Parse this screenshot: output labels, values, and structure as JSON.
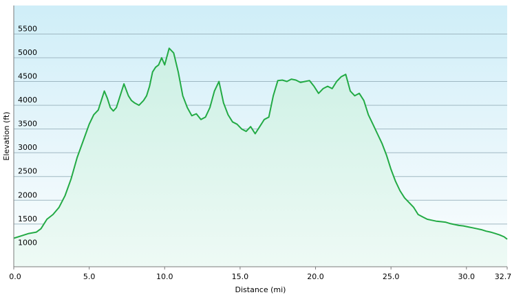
{
  "chart_data": {
    "type": "area",
    "title": "",
    "xlabel": "Distance (mi)",
    "ylabel": "Elevation (ft)",
    "xlim": [
      0,
      32.7
    ],
    "ylim": [
      600,
      6100
    ],
    "x_ticks": [
      0,
      5,
      10,
      15,
      20,
      25,
      30,
      32.7
    ],
    "x_tick_labels": [
      "0.0",
      "5.0",
      "10.0",
      "15.0",
      "20.0",
      "25.0",
      "30.0",
      "32.7"
    ],
    "y_ticks": [
      1000,
      1500,
      2000,
      2500,
      3000,
      3500,
      4000,
      4500,
      5000,
      5500
    ],
    "y_tick_labels": [
      "1000",
      "1500",
      "2000",
      "2500",
      "3000",
      "3500",
      "4000",
      "4500",
      "5000",
      "5500"
    ],
    "grid": true,
    "legend": "none",
    "series": [
      {
        "x": [
          0,
          0.5,
          1.0,
          1.5,
          1.8,
          2.2,
          2.6,
          3.0,
          3.4,
          3.8,
          4.2,
          4.6,
          5.0,
          5.3,
          5.6,
          5.8,
          6.0,
          6.2,
          6.4,
          6.6,
          6.8,
          7.0,
          7.3,
          7.6,
          7.8,
          8.0,
          8.3,
          8.6,
          8.8,
          9.0,
          9.2,
          9.4,
          9.6,
          9.8,
          10.0,
          10.3,
          10.6,
          10.9,
          11.2,
          11.5,
          11.8,
          12.1,
          12.4,
          12.7,
          13.0,
          13.3,
          13.6,
          13.9,
          14.2,
          14.5,
          14.8,
          15.1,
          15.4,
          15.7,
          16.0,
          16.3,
          16.6,
          16.9,
          17.2,
          17.5,
          17.8,
          18.1,
          18.4,
          18.7,
          19.0,
          19.3,
          19.6,
          19.9,
          20.2,
          20.5,
          20.8,
          21.1,
          21.4,
          21.7,
          22.0,
          22.3,
          22.6,
          22.9,
          23.2,
          23.5,
          23.8,
          24.1,
          24.4,
          24.7,
          25.0,
          25.3,
          25.6,
          25.9,
          26.2,
          26.5,
          26.8,
          27.1,
          27.4,
          27.7,
          28.0,
          28.3,
          28.6,
          28.9,
          29.2,
          29.5,
          29.8,
          30.1,
          30.4,
          30.7,
          31.0,
          31.3,
          31.6,
          31.9,
          32.2,
          32.5,
          32.7
        ],
        "y": [
          1200,
          1250,
          1300,
          1330,
          1400,
          1600,
          1700,
          1850,
          2100,
          2450,
          2900,
          3250,
          3600,
          3800,
          3900,
          4100,
          4300,
          4150,
          3950,
          3880,
          3950,
          4150,
          4450,
          4200,
          4100,
          4050,
          4000,
          4100,
          4200,
          4400,
          4700,
          4800,
          4850,
          5000,
          4850,
          5200,
          5100,
          4700,
          4200,
          3950,
          3780,
          3820,
          3700,
          3750,
          3950,
          4300,
          4500,
          4050,
          3800,
          3650,
          3600,
          3500,
          3450,
          3550,
          3400,
          3550,
          3700,
          3750,
          4200,
          4520,
          4530,
          4500,
          4550,
          4530,
          4480,
          4500,
          4520,
          4400,
          4250,
          4350,
          4400,
          4350,
          4500,
          4600,
          4650,
          4300,
          4200,
          4250,
          4100,
          3800,
          3600,
          3400,
          3200,
          2950,
          2650,
          2400,
          2200,
          2050,
          1950,
          1850,
          1700,
          1650,
          1600,
          1580,
          1560,
          1550,
          1540,
          1510,
          1490,
          1470,
          1460,
          1440,
          1420,
          1400,
          1380,
          1350,
          1330,
          1300,
          1270,
          1230,
          1180
        ]
      }
    ]
  }
}
